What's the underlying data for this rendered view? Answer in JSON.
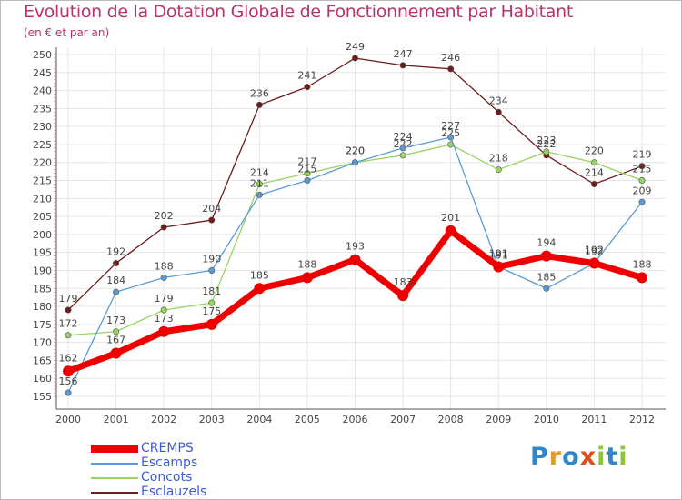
{
  "title": "Evolution de la Dotation Globale de Fonctionnement par Habitant",
  "subtitle": "(en € et par an)",
  "logo": {
    "text": "Proxiti",
    "letters": [
      {
        "ch": "P",
        "color": "#2f86c8"
      },
      {
        "ch": "r",
        "color": "#e39b2d"
      },
      {
        "ch": "o",
        "color": "#2f86c8"
      },
      {
        "ch": "x",
        "color": "#e04f1a"
      },
      {
        "ch": "i",
        "color": "#8fc33a"
      },
      {
        "ch": "t",
        "color": "#2f86c8"
      },
      {
        "ch": "i",
        "color": "#8fc33a"
      }
    ]
  },
  "chart_data": {
    "type": "line",
    "x": [
      "2000",
      "2001",
      "2002",
      "2003",
      "2004",
      "2005",
      "2006",
      "2007",
      "2008",
      "2009",
      "2010",
      "2011",
      "2012"
    ],
    "ylim": [
      155,
      250
    ],
    "yticks": [
      155,
      160,
      165,
      170,
      175,
      180,
      185,
      190,
      195,
      200,
      205,
      210,
      215,
      220,
      225,
      230,
      235,
      240,
      245,
      250
    ],
    "grid": true,
    "legend_position": "bottom-left",
    "series": [
      {
        "name": "Esclauzels",
        "color": "#6e1c1c",
        "values": [
          179,
          192,
          202,
          204,
          236,
          241,
          249,
          247,
          246,
          234,
          222,
          214,
          219
        ]
      },
      {
        "name": "Concots",
        "color": "#97d462",
        "values": [
          172,
          173,
          179,
          181,
          214,
          217,
          220,
          222,
          225,
          218,
          223,
          220,
          215
        ]
      },
      {
        "name": "Escamps",
        "color": "#5b9bd5",
        "values": [
          156,
          184,
          188,
          190,
          211,
          215,
          220,
          224,
          227,
          191,
          185,
          192,
          209
        ]
      },
      {
        "name": "CREMPS",
        "color": "#ee0000",
        "values": [
          162,
          167,
          173,
          175,
          185,
          188,
          193,
          183,
          201,
          191,
          194,
          192,
          188
        ]
      }
    ]
  },
  "legend": [
    {
      "name": "CREMPS",
      "color": "#ee0000"
    },
    {
      "name": "Escamps",
      "color": "#5b9bd5"
    },
    {
      "name": "Concots",
      "color": "#97d462"
    },
    {
      "name": "Esclauzels",
      "color": "#6e1c1c"
    }
  ]
}
